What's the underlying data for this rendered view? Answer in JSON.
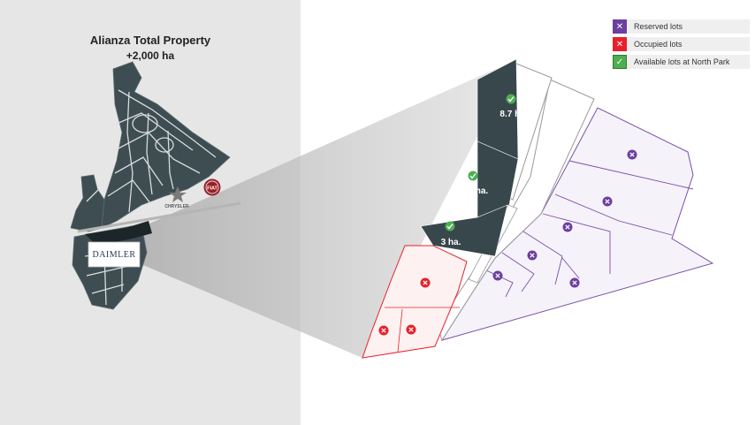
{
  "property": {
    "title": "Alianza Total Property",
    "area": "+2,000 ha"
  },
  "brands": {
    "chrysler": "CHRYSLER",
    "fiat": "FIAT",
    "daimler": "DAIMLER"
  },
  "legend": [
    {
      "label": "Reserved lots",
      "icon": "x-icon",
      "color": "#6b3fa0"
    },
    {
      "label": "Occupied lots",
      "icon": "x-icon",
      "color": "#e8202a"
    },
    {
      "label": "Available lots at North Park",
      "icon": "check-icon",
      "color": "#4caf50"
    }
  ],
  "available_lots": [
    {
      "label": "8.7 ha."
    },
    {
      "label": "10 ha."
    },
    {
      "label": "3 ha."
    }
  ],
  "colors": {
    "available_fill": "#38474c",
    "available_marker": "#4caf50",
    "reserved_outline": "#7b4fa8",
    "reserved_fill": "#f5f2fa",
    "reserved_marker": "#6b3fa0",
    "occupied_outline": "#e8202a",
    "occupied_fill": "#fdf1f1",
    "occupied_marker": "#e8202a",
    "left_panel_bg": "#e6e6e6",
    "map_fill": "#3e4d52"
  }
}
